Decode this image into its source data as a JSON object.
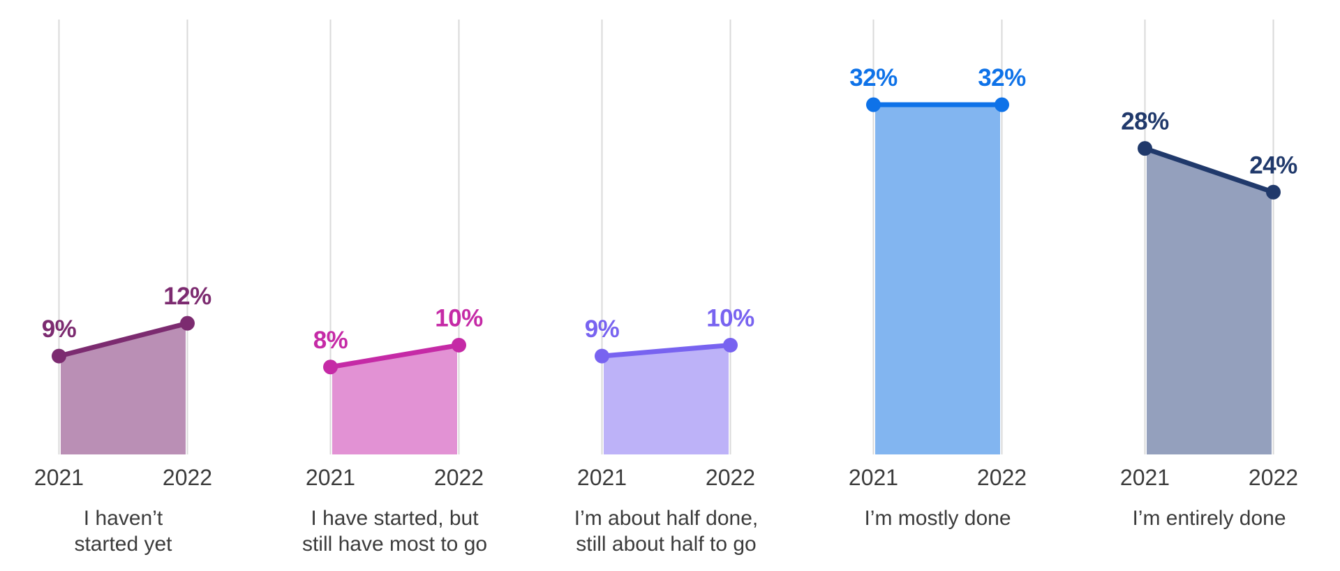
{
  "chart_data": {
    "type": "area",
    "title": "",
    "xlabel": "",
    "ylabel": "",
    "unit": "%",
    "categories": [
      "2021",
      "2022"
    ],
    "ylim": [
      0,
      40
    ],
    "grid": "vertical-gridlines-only",
    "legend": "none",
    "axis_text_color": "#3B3B3B",
    "gridline_color": "#DADADA",
    "series": [
      {
        "name": "I haven’t started yet",
        "label_lines": [
          "I haven’t",
          "started yet"
        ],
        "values": [
          9,
          12
        ],
        "line_color": "#7C2B70",
        "fill_color": "#BA8FB5"
      },
      {
        "name": "I have started, but still have most to go",
        "label_lines": [
          "I have started, but",
          "still have most to go"
        ],
        "values": [
          8,
          10
        ],
        "line_color": "#C52AA6",
        "fill_color": "#E292D4"
      },
      {
        "name": "I’m about half done, still about half to go",
        "label_lines": [
          "I’m about half done,",
          "still about half to go"
        ],
        "values": [
          9,
          10
        ],
        "line_color": "#7863F0",
        "fill_color": "#BDB2F8"
      },
      {
        "name": "I’m mostly done",
        "label_lines": [
          "I’m mostly done"
        ],
        "values": [
          32,
          32
        ],
        "line_color": "#0E72E8",
        "fill_color": "#82B5F0"
      },
      {
        "name": "I’m entirely done",
        "label_lines": [
          "I’m entirely done"
        ],
        "values": [
          28,
          24
        ],
        "line_color": "#20396B",
        "fill_color": "#94A0BD"
      }
    ]
  }
}
